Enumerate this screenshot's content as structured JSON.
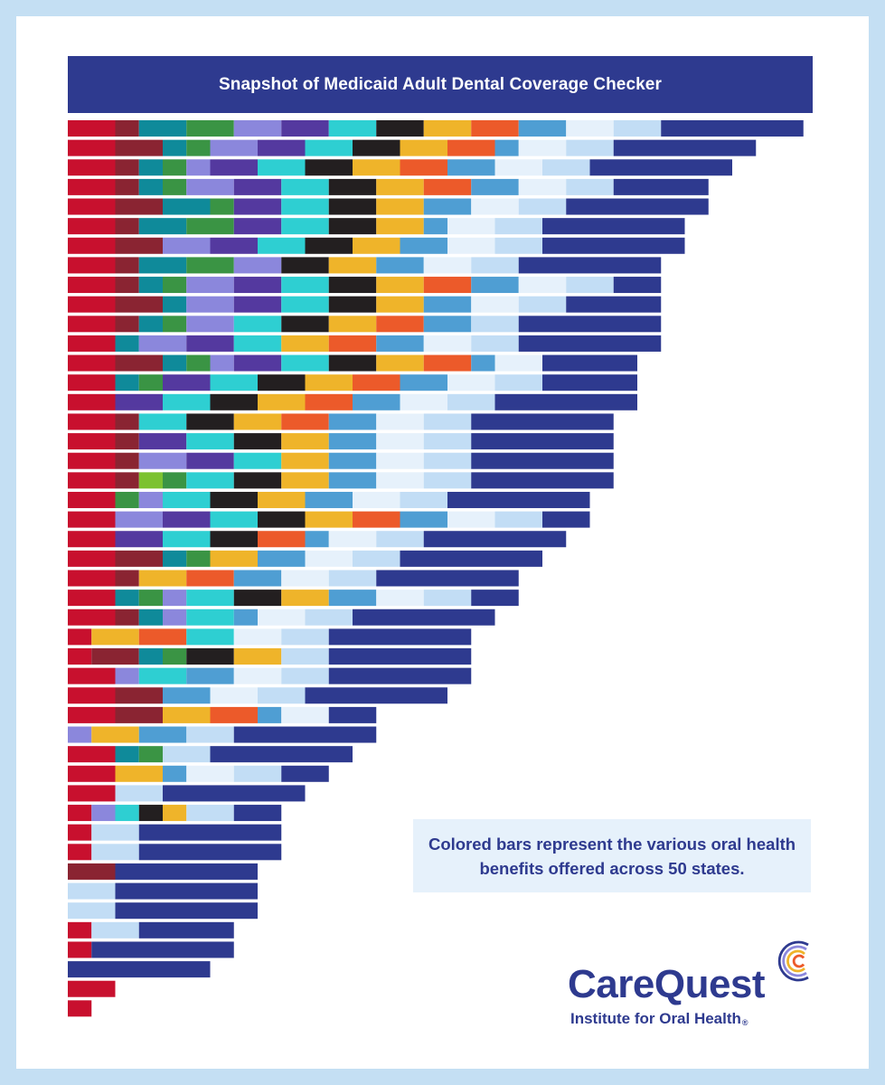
{
  "title": "Snapshot of Medicaid Adult Dental Coverage Checker",
  "note": "Colored bars represent the various oral health benefits offered across 50 states.",
  "brand": {
    "name": "CareQuest",
    "subtitle": "Institute for Oral Health",
    "registered_mark": "®"
  },
  "colors": {
    "R": "#c8102e",
    "M": "#8a2432",
    "T": "#0f8a9a",
    "G": "#3a9444",
    "L": "#8b87dc",
    "P": "#54399f",
    "C": "#2ecfd2",
    "K": "#231f20",
    "Y": "#efb42a",
    "O": "#ec5a2a",
    "B": "#4f9ed3",
    "W": "#e6f1fb",
    "S": "#c2ddf5",
    "N": "#2e3a8f",
    "A": "#7cc230"
  },
  "chart_data": {
    "type": "bar",
    "orientation": "horizontal-stacked",
    "series_colors": [
      "#c8102e",
      "#8a2432",
      "#0f8a9a",
      "#3a9444",
      "#8b87dc",
      "#54399f",
      "#2ecfd2",
      "#231f20",
      "#efb42a",
      "#ec5a2a",
      "#4f9ed3",
      "#e6f1fb",
      "#c2ddf5",
      "#2e3a8f",
      "#7cc230"
    ],
    "rows": [
      "R2 M1 T2 G2 L2 P2 C2 K2 Y2 O2 B2 W2 S2 N6",
      "R2 M2 T1 G1 L2 P2 C2 K2 Y2 O2 B1 W2 S2 N6",
      "R2 M1 T1 G1 L1 P2 C2 K2 Y2 O2 B2 W2 S2 N6",
      "R2 M1 T1 G1 L2 P2 C2 K2 Y2 O2 B2 W2 S2 N4",
      "R2 M2 T2 G1 P2 C2 K2 Y2 B2 W2 S2 N6",
      "R2 M1 T2 G2 P2 C2 K2 Y2 B1 W2 S2 N6",
      "R2 M2 L2 P2 C2 K2 Y2 B2 W2 S2 N6",
      "R2 M1 T2 G2 L2 K2 Y2 B2 W2 S2 N6",
      "R2 M1 T1 G1 L2 P2 C2 K2 Y2 O2 B2 W2 S2 N2",
      "R2 M2 T1 L2 P2 C2 K2 Y2 B2 W2 S2 N4",
      "R2 M1 T1 G1 L2 C2 K2 Y2 O2 B2 S2 N6",
      "R2 T1 L2 P2 C2 Y2 O2 B2 W2 S2 N6",
      "R2 M2 T1 G1 L1 P2 C2 K2 Y2 O2 B1 W2 N4",
      "R2 T1 G1 P2 C2 K2 Y2 O2 B2 W2 S2 N4",
      "R2 P2 C2 K2 Y2 O2 B2 W2 S2 N6",
      "R2 M1 C2 K2 Y2 O2 B2 W2 S2 N6",
      "R2 M1 P2 C2 K2 Y2 B2 W2 S2 N6",
      "R2 M1 L2 P2 C2 Y2 B2 W2 S2 N6",
      "R2 M1 A1 G1 C2 K2 Y2 B2 W2 S2 N6",
      "R2 G1 L1 C2 K2 Y2 B2 W2 S2 N6",
      "R2 L2 P2 C2 K2 Y2 O2 B2 W2 S2 N2",
      "R2 P2 C2 K2 O2 B1 W2 S2 N6",
      "R2 M2 T1 G1 Y2 B2 W2 S2 N6",
      "R2 M1 Y2 O2 B2 W2 S2 N6",
      "R2 T1 G1 L1 C2 K2 Y2 B2 W2 S2 N2",
      "R2 M1 T1 L1 C2 B1 W2 S2 N6",
      "R1 Y2 O2 C2 W2 S2 N6",
      "R1 M2 T1 G1 K2 Y2 S2 N6",
      "R2 L1 C2 B2 W2 S2 N6",
      "R2 M2 B2 W2 S2 N6",
      "R2 M2 Y2 O2 B1 W2 N2",
      "L1 Y2 B2 S2 N6",
      "R2 T1 G1 S2 N6",
      "R2 Y2 B1 W2 S2 N2",
      "R2 S2 N6",
      "R1 L1 C1 K1 Y1 S2 N2",
      "R1 S2 N6",
      "R1 S2 N6",
      "M2 N6",
      "S2 N6",
      "S2 N6",
      "R1 S2 N4",
      "R1 N6",
      "N6",
      "R2",
      "R1"
    ],
    "legend": "B=light blue, N=navy, R=red, M=maroon, T=teal, G=green, L=lavender, P=purple, C=cyan, K=black, Y=yellow, O=orange, W=pale blue, S=sky blue, A=lime green"
  }
}
